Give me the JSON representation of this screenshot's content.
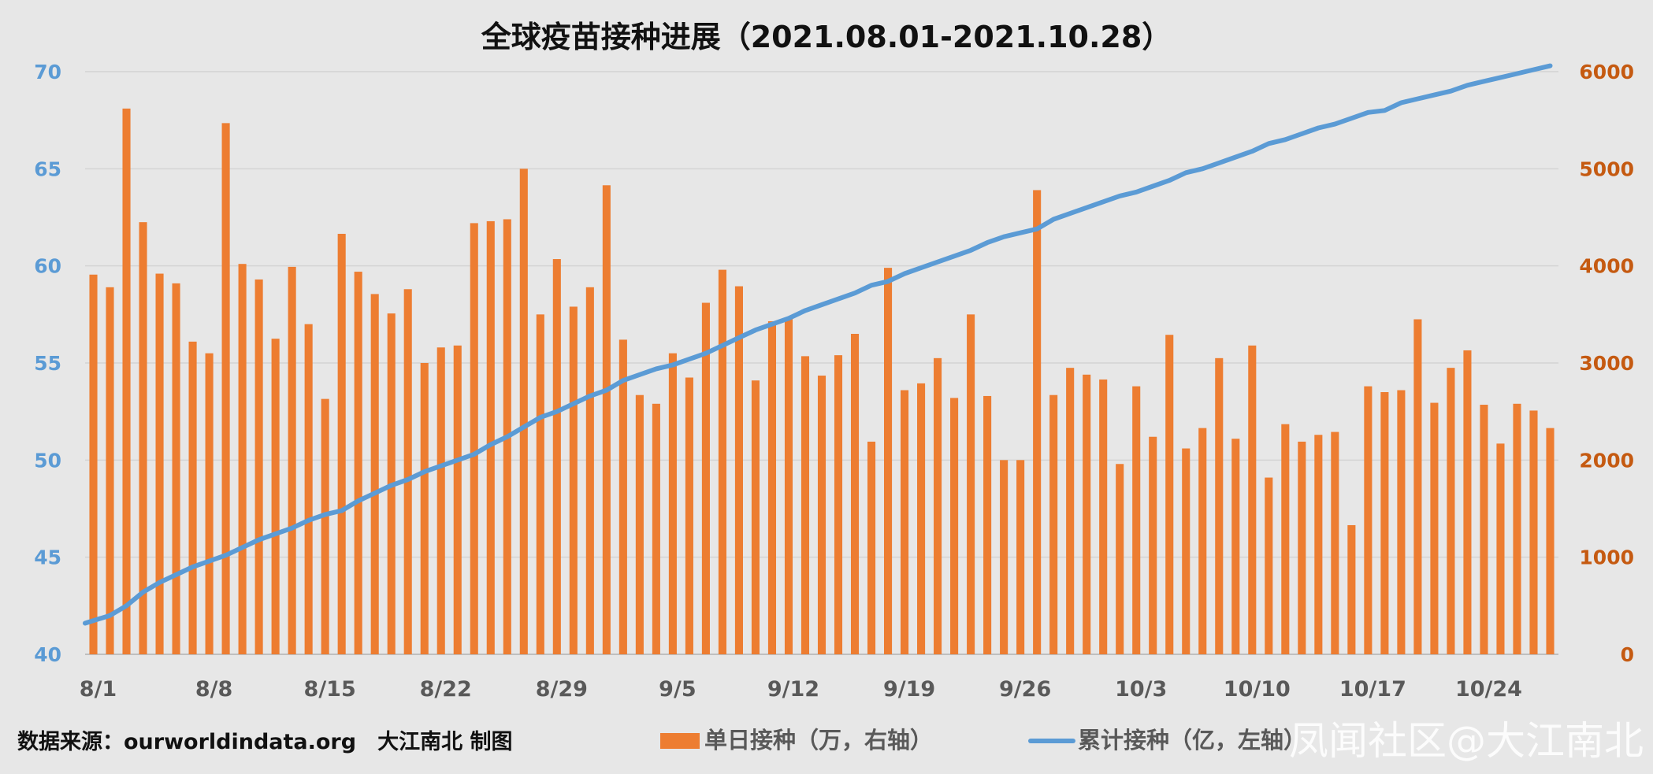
{
  "chart_data": {
    "type": "bar+line",
    "title": "全球疫苗接种进展（2021.08.01-2021.10.28）",
    "source_note": "数据来源：ourworldindata.org　大江南北 制图",
    "watermark": "凤闻社区@大江南北",
    "x": [
      "8/1",
      "8/2",
      "8/3",
      "8/4",
      "8/5",
      "8/6",
      "8/7",
      "8/8",
      "8/9",
      "8/10",
      "8/11",
      "8/12",
      "8/13",
      "8/14",
      "8/15",
      "8/16",
      "8/17",
      "8/18",
      "8/19",
      "8/20",
      "8/21",
      "8/22",
      "8/23",
      "8/24",
      "8/25",
      "8/26",
      "8/27",
      "8/28",
      "8/29",
      "8/30",
      "8/31",
      "9/1",
      "9/2",
      "9/3",
      "9/4",
      "9/5",
      "9/6",
      "9/7",
      "9/8",
      "9/9",
      "9/10",
      "9/11",
      "9/12",
      "9/13",
      "9/14",
      "9/15",
      "9/16",
      "9/17",
      "9/18",
      "9/19",
      "9/20",
      "9/21",
      "9/22",
      "9/23",
      "9/24",
      "9/25",
      "9/26",
      "9/27",
      "9/28",
      "9/29",
      "9/30",
      "10/1",
      "10/2",
      "10/3",
      "10/4",
      "10/5",
      "10/6",
      "10/7",
      "10/8",
      "10/9",
      "10/10",
      "10/11",
      "10/12",
      "10/13",
      "10/14",
      "10/15",
      "10/16",
      "10/17",
      "10/18",
      "10/19",
      "10/20",
      "10/21",
      "10/22",
      "10/23",
      "10/24",
      "10/25",
      "10/26",
      "10/27",
      "10/28"
    ],
    "x_tick_labels": [
      "8/1",
      "8/8",
      "8/15",
      "8/22",
      "8/29",
      "9/5",
      "9/12",
      "9/19",
      "9/26",
      "10/3",
      "10/10",
      "10/17",
      "10/24"
    ],
    "series": [
      {
        "name": "单日接种（万，右轴）",
        "type": "bar",
        "axis": "right",
        "color": "#ed7d31",
        "values": [
          3910,
          3780,
          5620,
          4450,
          3920,
          3820,
          3220,
          3100,
          5470,
          4020,
          3860,
          3250,
          3990,
          3400,
          2630,
          4330,
          3940,
          3710,
          3510,
          3760,
          3000,
          3160,
          3180,
          4440,
          4460,
          4480,
          5000,
          3500,
          4070,
          3580,
          3780,
          4830,
          3240,
          2670,
          2580,
          3100,
          2850,
          3620,
          3960,
          3790,
          2820,
          3430,
          3470,
          3070,
          2870,
          3080,
          3300,
          2190,
          3980,
          2720,
          2790,
          3050,
          2640,
          3500,
          2660,
          2000,
          2000,
          4780,
          2670,
          2950,
          2880,
          2830,
          1960,
          2760,
          2240,
          3290,
          2120,
          2330,
          3050,
          2220,
          3180,
          1820,
          2370,
          2190,
          2260,
          2290,
          1330,
          2760,
          2700,
          2720,
          3450,
          2590,
          2950,
          3130,
          2570,
          2170,
          2580,
          2510,
          2330
        ]
      },
      {
        "name": "累计接种（亿，左轴）",
        "type": "line",
        "axis": "left",
        "color": "#5b9bd5",
        "values": [
          41.6,
          42.0,
          42.5,
          43.2,
          43.7,
          44.1,
          44.5,
          44.8,
          45.1,
          45.5,
          45.9,
          46.2,
          46.5,
          46.9,
          47.2,
          47.4,
          47.9,
          48.3,
          48.7,
          49.0,
          49.4,
          49.7,
          50.0,
          50.3,
          50.8,
          51.2,
          51.7,
          52.2,
          52.5,
          52.9,
          53.3,
          53.6,
          54.1,
          54.4,
          54.7,
          54.9,
          55.2,
          55.5,
          55.9,
          56.3,
          56.7,
          57.0,
          57.3,
          57.7,
          58.0,
          58.3,
          58.6,
          59.0,
          59.2,
          59.6,
          59.9,
          60.2,
          60.5,
          60.8,
          61.2,
          61.5,
          61.7,
          61.9,
          62.4,
          62.7,
          63.0,
          63.3,
          63.6,
          63.8,
          64.1,
          64.4,
          64.8,
          65.0,
          65.3,
          65.6,
          65.9,
          66.3,
          66.5,
          66.8,
          67.1,
          67.3,
          67.6,
          67.9,
          68.0,
          68.4,
          68.6,
          68.8,
          69.0,
          69.3,
          69.5,
          69.7,
          69.9,
          70.1,
          70.3
        ]
      }
    ],
    "left_axis": {
      "ylim": [
        40,
        70
      ],
      "ticks": [
        "40",
        "45",
        "50",
        "55",
        "60",
        "65",
        "70"
      ],
      "color": "#5b9bd5"
    },
    "right_axis": {
      "ylim": [
        0,
        6000
      ],
      "ticks": [
        "0",
        "1000",
        "2000",
        "3000",
        "4000",
        "5000",
        "6000"
      ],
      "color": "#c55a11"
    },
    "grid": true,
    "legend_position": "bottom"
  }
}
